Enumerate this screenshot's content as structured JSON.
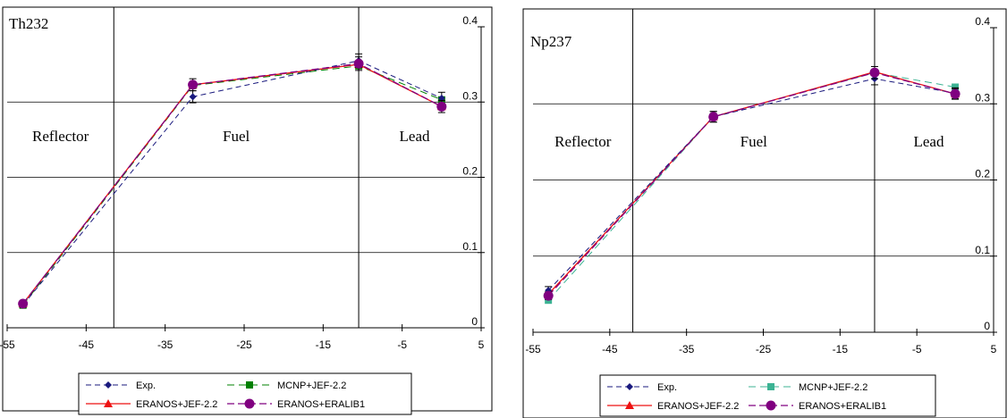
{
  "colors": {
    "exp": "#1a1a7e",
    "mcnp_left": "#008000",
    "mcnp_right": "#3cb393",
    "eranos_jef": "#ee1111",
    "eranos_eralib": "#800080"
  },
  "chart_data": [
    {
      "type": "line",
      "title": "Th232",
      "region_labels": [
        "Reflector",
        "Fuel",
        "Lead"
      ],
      "region_boundaries": [
        -41.5,
        -10.5
      ],
      "xlim": [
        -55,
        5
      ],
      "ylim": [
        0,
        0.4
      ],
      "x_ticks": [
        "-55",
        "-45",
        "-35",
        "-25",
        "-15",
        "-5",
        "5"
      ],
      "y_ticks": [
        "0",
        "0.1",
        "0.2",
        "0.3",
        "0.4"
      ],
      "x": [
        -53,
        -31.5,
        -10.5,
        0
      ],
      "series": [
        {
          "name": "Exp.",
          "values": [
            0.03,
            0.307,
            0.355,
            0.305
          ],
          "error": [
            0.003,
            0.008,
            0.009,
            0.008
          ]
        },
        {
          "name": "MCNP+JEF-2.2",
          "values": [
            0.03,
            0.322,
            0.348,
            0.303
          ]
        },
        {
          "name": "ERANOS+JEF-2.2",
          "values": [
            0.032,
            0.323,
            0.35,
            0.294
          ]
        },
        {
          "name": "ERANOS+ERALIB1",
          "values": [
            0.032,
            0.323,
            0.351,
            0.294
          ],
          "error": [
            0.003,
            0.008,
            0.009,
            0.008
          ]
        }
      ],
      "legend": "bottom"
    },
    {
      "type": "line",
      "title": "Np237",
      "region_labels": [
        "Reflector",
        "Fuel",
        "Lead"
      ],
      "region_boundaries": [
        -42,
        -10.5
      ],
      "xlim": [
        -55,
        5
      ],
      "ylim": [
        0,
        0.4
      ],
      "x_ticks": [
        "-55",
        "-45",
        "-35",
        "-25",
        "-15",
        "-5",
        "5"
      ],
      "y_ticks": [
        "0",
        "0.1",
        "0.2",
        "0.3",
        "0.4"
      ],
      "x": [
        -53,
        -31.5,
        -10.5,
        0
      ],
      "series": [
        {
          "name": "Exp.",
          "values": [
            0.055,
            0.283,
            0.333,
            0.314
          ],
          "error": [
            0.005,
            0.007,
            0.008,
            0.007
          ]
        },
        {
          "name": "MCNP+JEF-2.2",
          "values": [
            0.042,
            0.283,
            0.341,
            0.322
          ]
        },
        {
          "name": "ERANOS+JEF-2.2",
          "values": [
            0.05,
            0.283,
            0.342,
            0.313
          ]
        },
        {
          "name": "ERANOS+ERALIB1",
          "values": [
            0.048,
            0.283,
            0.341,
            0.313
          ],
          "error": [
            0.005,
            0.007,
            0.008,
            0.007
          ]
        }
      ],
      "legend": "bottom"
    }
  ]
}
